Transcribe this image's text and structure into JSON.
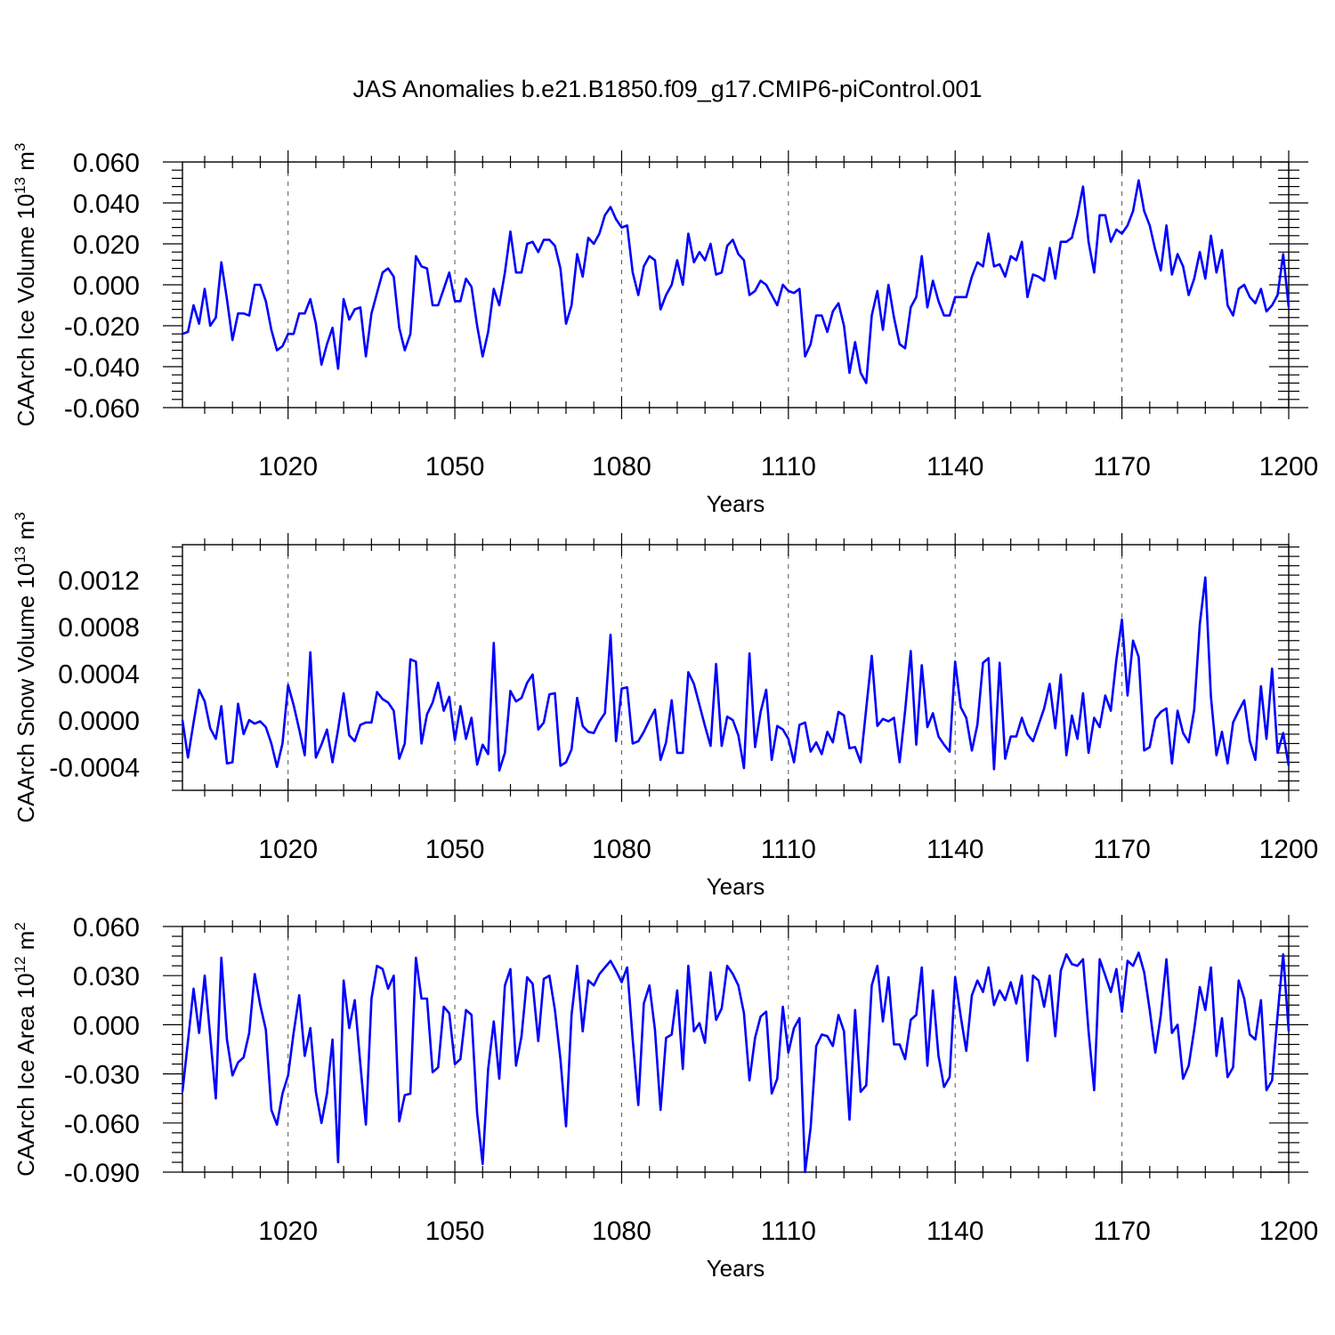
{
  "figure_title": "JAS Anomalies b.e21.B1850.f09_g17.CMIP6-piControl.001",
  "colors": {
    "line": "#0000ff",
    "axis": "#000000",
    "grid": "#555555"
  },
  "chart_data": [
    {
      "type": "line",
      "title": "JAS Anomalies b.e21.B1850.f09_g17.CMIP6-piControl.001",
      "ylabel": "CAArch Ice Volume 10",
      "ylabel_exp": "13",
      "ylabel_unit": " m",
      "ylabel_unit_exp": "3",
      "xlabel": "Years",
      "xlim": [
        1001,
        1200
      ],
      "ylim": [
        -0.06,
        0.06
      ],
      "x_ticks": [
        1020,
        1050,
        1080,
        1110,
        1140,
        1170,
        1200
      ],
      "x_tick_labels": [
        "1020",
        "1050",
        "1080",
        "1110",
        "1140",
        "1170",
        "1200"
      ],
      "y_ticks": [
        -0.06,
        -0.04,
        -0.02,
        0.0,
        0.02,
        0.04,
        0.06
      ],
      "y_tick_labels": [
        "-0.060",
        "-0.040",
        "-0.020",
        "0.000",
        "0.020",
        "0.040",
        "0.060"
      ],
      "grid": "vertical dashed",
      "series": [
        {
          "name": "CAArch Ice Volume",
          "x_start": 1001,
          "values": [
            -0.024,
            -0.023,
            -0.01,
            -0.019,
            -0.002,
            -0.02,
            -0.016,
            0.011,
            -0.007,
            -0.027,
            -0.014,
            -0.014,
            -0.015,
            0.0,
            0.0,
            -0.008,
            -0.022,
            -0.032,
            -0.03,
            -0.024,
            -0.024,
            -0.014,
            -0.014,
            -0.007,
            -0.019,
            -0.039,
            -0.029,
            -0.021,
            -0.041,
            -0.007,
            -0.017,
            -0.012,
            -0.011,
            -0.035,
            -0.014,
            -0.004,
            0.006,
            0.008,
            0.004,
            -0.021,
            -0.032,
            -0.024,
            0.014,
            0.009,
            0.008,
            -0.01,
            -0.01,
            -0.002,
            0.006,
            -0.008,
            -0.008,
            0.003,
            -0.001,
            -0.02,
            -0.035,
            -0.023,
            -0.002,
            -0.01,
            0.006,
            0.026,
            0.006,
            0.006,
            0.02,
            0.021,
            0.016,
            0.022,
            0.022,
            0.019,
            0.008,
            -0.019,
            -0.01,
            0.015,
            0.004,
            0.023,
            0.02,
            0.025,
            0.034,
            0.038,
            0.032,
            0.028,
            0.029,
            0.006,
            -0.005,
            0.009,
            0.014,
            0.012,
            -0.012,
            -0.005,
            0.0,
            0.012,
            0.0,
            0.025,
            0.011,
            0.016,
            0.012,
            0.02,
            0.005,
            0.006,
            0.019,
            0.022,
            0.015,
            0.012,
            -0.005,
            -0.003,
            0.002,
            0.0,
            -0.005,
            -0.01,
            0.0,
            -0.003,
            -0.004,
            -0.002,
            -0.035,
            -0.029,
            -0.015,
            -0.015,
            -0.023,
            -0.013,
            -0.009,
            -0.02,
            -0.043,
            -0.028,
            -0.043,
            -0.048,
            -0.015,
            -0.003,
            -0.022,
            0.0,
            -0.016,
            -0.029,
            -0.031,
            -0.011,
            -0.006,
            0.014,
            -0.011,
            0.002,
            -0.008,
            -0.015,
            -0.015,
            -0.006,
            -0.006,
            -0.006,
            0.004,
            0.011,
            0.009,
            0.025,
            0.009,
            0.01,
            0.004,
            0.014,
            0.012,
            0.021,
            -0.006,
            0.005,
            0.004,
            0.002,
            0.018,
            0.003,
            0.021,
            0.021,
            0.023,
            0.034,
            0.048,
            0.021,
            0.006,
            0.034,
            0.034,
            0.021,
            0.027,
            0.025,
            0.029,
            0.036,
            0.051,
            0.036,
            0.029,
            0.017,
            0.007,
            0.029,
            0.005,
            0.015,
            0.009,
            -0.005,
            0.003,
            0.016,
            0.003,
            0.024,
            0.006,
            0.017,
            -0.01,
            -0.015,
            -0.002,
            0.0,
            -0.006,
            -0.009,
            -0.002,
            -0.013,
            -0.01,
            -0.005,
            0.015,
            -0.011
          ]
        }
      ]
    },
    {
      "type": "line",
      "ylabel": "CAArch Snow Volume 10",
      "ylabel_exp": "13",
      "ylabel_unit": " m",
      "ylabel_unit_exp": "3",
      "xlabel": "Years",
      "xlim": [
        1001,
        1200
      ],
      "ylim": [
        -0.0006,
        0.0015
      ],
      "x_ticks": [
        1020,
        1050,
        1080,
        1110,
        1140,
        1170,
        1200
      ],
      "x_tick_labels": [
        "1020",
        "1050",
        "1080",
        "1110",
        "1140",
        "1170",
        "1200"
      ],
      "y_ticks": [
        -0.0004,
        0.0,
        0.0004,
        0.0008,
        0.0012
      ],
      "y_tick_labels": [
        "-0.0004",
        "0.0000",
        "0.0004",
        "0.0008",
        "0.0012"
      ],
      "grid": "vertical dashed",
      "series": [
        {
          "name": "CAArch Snow Volume",
          "x_start": 1001,
          "values": [
            0.0,
            -0.00032,
            -2e-05,
            0.00026,
            0.00016,
            -7e-05,
            -0.00016,
            0.00012,
            -0.00037,
            -0.00036,
            0.00014,
            -0.00012,
            0.0,
            -3e-05,
            -1e-05,
            -6e-05,
            -0.0002,
            -0.0004,
            -0.0002,
            0.0003,
            0.00013,
            -8e-05,
            -0.0003,
            0.00058,
            -0.00032,
            -0.00021,
            -8e-05,
            -0.00036,
            -8e-05,
            0.00023,
            -0.00013,
            -0.00018,
            -4e-05,
            -2e-05,
            -2e-05,
            0.00024,
            0.00018,
            0.00015,
            8e-05,
            -0.00033,
            -0.0002,
            0.00052,
            0.0005,
            -0.0002,
            5e-05,
            0.00015,
            0.00032,
            8e-05,
            0.0002,
            -0.00017,
            0.00012,
            -0.00016,
            2e-05,
            -0.00038,
            -0.00021,
            -0.00029,
            0.00066,
            -0.00043,
            -0.00028,
            0.00025,
            0.00016,
            0.00019,
            0.00032,
            0.00039,
            -8e-05,
            -2e-05,
            0.00022,
            0.00023,
            -0.00039,
            -0.00036,
            -0.00025,
            0.00019,
            -5e-05,
            -0.0001,
            -0.00011,
            -1e-05,
            6e-05,
            0.00073,
            -0.00018,
            0.00027,
            0.00028,
            -0.0002,
            -0.00018,
            -0.0001,
            0.0,
            9e-05,
            -0.00034,
            -0.00019,
            0.00017,
            -0.00028,
            -0.00028,
            0.00041,
            0.00031,
            0.00013,
            -5e-05,
            -0.00022,
            0.00048,
            -0.00022,
            3e-05,
            0.0,
            -0.00013,
            -0.00041,
            0.00057,
            -0.00023,
            7e-05,
            0.00026,
            -0.00034,
            -5e-05,
            -8e-05,
            -0.00016,
            -0.00036,
            -4e-05,
            -2e-05,
            -0.00027,
            -0.00019,
            -0.00029,
            -0.0001,
            -0.00019,
            7e-05,
            4e-05,
            -0.00024,
            -0.00023,
            -0.00036,
            0.0001,
            0.00055,
            -5e-05,
            1e-05,
            -1e-05,
            2e-05,
            -0.00036,
            8e-05,
            0.00059,
            -0.00021,
            0.00047,
            -6e-05,
            6e-05,
            -0.00014,
            -0.00021,
            -0.00027,
            0.0005,
            0.00011,
            2e-05,
            -0.00026,
            -4e-05,
            0.00049,
            0.00053,
            -0.00042,
            0.00049,
            -0.00033,
            -0.00014,
            -0.00014,
            2e-05,
            -0.00012,
            -0.00018,
            -4e-05,
            0.0001,
            0.00031,
            -7e-05,
            0.00039,
            -0.0003,
            4e-05,
            -0.00016,
            0.00023,
            -0.00028,
            2e-05,
            -6e-05,
            0.00021,
            8e-05,
            0.00052,
            0.00086,
            0.00021,
            0.00068,
            0.00054,
            -0.00026,
            -0.00023,
            1e-05,
            7e-05,
            0.0001,
            -0.00037,
            8e-05,
            -0.00011,
            -0.00019,
            9e-05,
            0.00082,
            0.00122,
            0.0002,
            -0.0003,
            -0.0001,
            -0.00037,
            -2e-05,
            8e-05,
            0.00017,
            -0.00018,
            -0.00034,
            0.00029,
            -0.00016,
            0.00044,
            -0.00028,
            -0.00011,
            -0.00039
          ]
        }
      ]
    },
    {
      "type": "line",
      "ylabel": "CAArch Ice Area 10",
      "ylabel_exp": "12",
      "ylabel_unit": " m",
      "ylabel_unit_exp": "2",
      "xlabel": "Years",
      "xlim": [
        1001,
        1200
      ],
      "ylim": [
        -0.09,
        0.06
      ],
      "x_ticks": [
        1020,
        1050,
        1080,
        1110,
        1140,
        1170,
        1200
      ],
      "x_tick_labels": [
        "1020",
        "1050",
        "1080",
        "1110",
        "1140",
        "1170",
        "1200"
      ],
      "y_ticks": [
        -0.09,
        -0.06,
        -0.03,
        0.0,
        0.03,
        0.06
      ],
      "y_tick_labels": [
        "-0.090",
        "-0.060",
        "-0.030",
        "0.000",
        "0.030",
        "0.060"
      ],
      "grid": "vertical dashed",
      "series": [
        {
          "name": "CAArch Ice Area",
          "x_start": 1001,
          "values": [
            -0.041,
            -0.01,
            0.022,
            -0.005,
            0.03,
            -0.007,
            -0.045,
            0.041,
            -0.009,
            -0.031,
            -0.023,
            -0.02,
            -0.005,
            0.031,
            0.012,
            -0.003,
            -0.052,
            -0.061,
            -0.042,
            -0.031,
            -0.005,
            0.018,
            -0.019,
            -0.002,
            -0.041,
            -0.06,
            -0.042,
            -0.009,
            -0.084,
            0.027,
            -0.002,
            0.015,
            -0.024,
            -0.061,
            0.016,
            0.036,
            0.034,
            0.022,
            0.03,
            -0.059,
            -0.043,
            -0.042,
            0.041,
            0.016,
            0.016,
            -0.029,
            -0.026,
            0.011,
            0.007,
            -0.024,
            -0.021,
            0.009,
            0.006,
            -0.054,
            -0.085,
            -0.027,
            0.002,
            -0.033,
            0.024,
            0.034,
            -0.025,
            -0.007,
            0.029,
            0.025,
            -0.01,
            0.028,
            0.03,
            0.009,
            -0.021,
            -0.062,
            0.006,
            0.036,
            -0.004,
            0.027,
            0.024,
            0.031,
            0.035,
            0.039,
            0.033,
            0.026,
            0.035,
            -0.009,
            -0.049,
            0.013,
            0.024,
            -0.003,
            -0.052,
            -0.008,
            -0.006,
            0.021,
            -0.027,
            0.036,
            -0.004,
            0.001,
            -0.011,
            0.032,
            0.003,
            0.01,
            0.036,
            0.031,
            0.024,
            0.007,
            -0.034,
            -0.008,
            0.005,
            0.008,
            -0.042,
            -0.033,
            0.011,
            -0.017,
            -0.002,
            0.004,
            -0.09,
            -0.063,
            -0.013,
            -0.006,
            -0.007,
            -0.013,
            0.006,
            -0.004,
            -0.058,
            0.009,
            -0.041,
            -0.037,
            0.024,
            0.036,
            0.002,
            0.029,
            -0.012,
            -0.012,
            -0.021,
            0.003,
            0.006,
            0.035,
            -0.025,
            0.021,
            -0.019,
            -0.038,
            -0.032,
            0.029,
            0.005,
            -0.016,
            0.018,
            0.027,
            0.02,
            0.035,
            0.012,
            0.021,
            0.015,
            0.026,
            0.013,
            0.03,
            -0.022,
            0.03,
            0.027,
            0.011,
            0.03,
            -0.007,
            0.033,
            0.043,
            0.037,
            0.036,
            0.04,
            -0.004,
            -0.04,
            0.04,
            0.03,
            0.02,
            0.034,
            0.008,
            0.039,
            0.036,
            0.044,
            0.032,
            0.009,
            -0.017,
            0.006,
            0.04,
            -0.005,
            0.0,
            -0.033,
            -0.025,
            -0.003,
            0.023,
            0.009,
            0.035,
            -0.019,
            0.004,
            -0.032,
            -0.026,
            0.027,
            0.016,
            -0.006,
            -0.009,
            0.015,
            -0.04,
            -0.034,
            0.006,
            0.043,
            -0.004
          ]
        }
      ]
    }
  ]
}
